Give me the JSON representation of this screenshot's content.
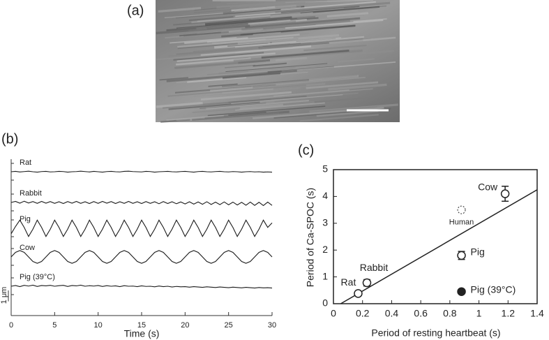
{
  "panel_labels": [
    "(a)",
    "(b)",
    "(c)"
  ],
  "chart_data": [
    {
      "type": "line",
      "xlabel": "Time (s)",
      "scale_label": "1 μm",
      "xlim": [
        0,
        30
      ],
      "xticks": [
        0,
        5,
        10,
        15,
        20,
        25,
        30
      ],
      "color": "#1a1a1a",
      "x": [
        0,
        0.5,
        1,
        1.5,
        2,
        2.5,
        3,
        3.5,
        4,
        4.5,
        5,
        5.5,
        6,
        6.5,
        7,
        7.5,
        8,
        8.5,
        9,
        9.5,
        10,
        10.5,
        11,
        11.5,
        12,
        12.5,
        13,
        13.5,
        14,
        14.5,
        15,
        15.5,
        16,
        16.5,
        17,
        17.5,
        18,
        18.5,
        19,
        19.5,
        20,
        20.5,
        21,
        21.5,
        22,
        22.5,
        23,
        23.5,
        24,
        24.5,
        25,
        25.5,
        26,
        26.5,
        27,
        27.5,
        28,
        28.5,
        29,
        29.5,
        30
      ],
      "series": [
        {
          "name": "Rat",
          "values": [
            0,
            0.02,
            -0.01,
            0.01,
            0.03,
            0,
            -0.02,
            0.01,
            0.02,
            -0.01,
            0,
            0.02,
            0.01,
            -0.02,
            0,
            0.01,
            0.03,
            0.01,
            -0.01,
            0.02,
            0,
            -0.02,
            0.01,
            0.02,
            0,
            -0.01,
            0.02,
            0.03,
            0.01,
            0,
            -0.01,
            0.02,
            0.01,
            -0.02,
            0,
            0.01,
            0.02,
            0,
            -0.01,
            0.01,
            0.02,
            0,
            -0.02,
            0.01,
            0.02,
            0,
            -0.01,
            0.01,
            0.02,
            0,
            -0.01,
            0.01,
            0,
            -0.02,
            0,
            0.01,
            -0.01,
            0,
            -0.02,
            -0.01,
            -0.02
          ]
        },
        {
          "name": "Rabbit",
          "values": [
            0,
            0.06,
            -0.04,
            0.07,
            -0.03,
            0.05,
            -0.05,
            0.06,
            -0.04,
            0.05,
            -0.05,
            0.04,
            -0.06,
            0.05,
            -0.04,
            0.06,
            -0.05,
            0.04,
            -0.06,
            0.05,
            -0.05,
            0.06,
            -0.04,
            0.05,
            -0.06,
            0.04,
            -0.05,
            0.06,
            -0.05,
            0.04,
            -0.06,
            0.05,
            -0.05,
            0.04,
            -0.07,
            0.05,
            -0.06,
            0.04,
            -0.07,
            0.03,
            -0.08,
            0.04,
            -0.09,
            0.03,
            -0.1,
            0.04,
            -0.11,
            0.02,
            -0.12,
            0.03,
            -0.13,
            0.02,
            -0.14,
            0.01,
            -0.15,
            0.02,
            -0.16,
            0.01,
            -0.17,
            0.02,
            -0.16
          ]
        },
        {
          "name": "Pig",
          "values": [
            -0.3,
            0.1,
            0.45,
            0.05,
            -0.45,
            -0.05,
            0.45,
            0.05,
            -0.45,
            -0.05,
            0.45,
            0.05,
            -0.45,
            -0.05,
            0.45,
            0.05,
            -0.45,
            -0.05,
            0.45,
            0.05,
            -0.45,
            -0.05,
            0.45,
            0.05,
            -0.45,
            -0.05,
            0.45,
            0.05,
            -0.45,
            -0.05,
            0.45,
            0.05,
            -0.45,
            -0.05,
            0.45,
            0.05,
            -0.45,
            -0.05,
            0.45,
            0.05,
            -0.45,
            -0.05,
            0.45,
            0.05,
            -0.45,
            -0.05,
            0.45,
            0.05,
            -0.45,
            -0.05,
            0.45,
            0.05,
            -0.45,
            -0.05,
            0.45,
            0.05,
            -0.45,
            -0.05,
            0.45,
            0.05,
            0.3
          ]
        },
        {
          "name": "Cow",
          "values": [
            0,
            0.25,
            0.35,
            0.25,
            0,
            -0.25,
            -0.35,
            -0.25,
            0,
            0.25,
            0.35,
            0.25,
            0,
            -0.25,
            -0.35,
            -0.25,
            0,
            0.25,
            0.35,
            0.25,
            0,
            -0.25,
            -0.35,
            -0.25,
            0,
            0.25,
            0.35,
            0.25,
            0,
            -0.25,
            -0.35,
            -0.25,
            0,
            0.25,
            0.35,
            0.25,
            0,
            -0.25,
            -0.35,
            -0.25,
            0,
            0.25,
            0.35,
            0.25,
            0,
            -0.25,
            -0.35,
            -0.25,
            0,
            0.25,
            0.35,
            0.25,
            0,
            -0.25,
            -0.35,
            -0.25,
            0,
            0.25,
            0.35,
            0.25,
            0
          ]
        },
        {
          "name": "Pig (39°C)",
          "values": [
            0,
            0.04,
            -0.02,
            0.05,
            0.01,
            0.06,
            -0.01,
            0.04,
            0.02,
            0.05,
            0,
            0.03,
            0.05,
            -0.01,
            0.04,
            0.02,
            0.06,
            0,
            0.03,
            0.01,
            0.04,
            -0.01,
            0.03,
            0,
            0.02,
            -0.02,
            0.03,
            0,
            0.01,
            -0.02,
            0.02,
            -0.01,
            0,
            -0.03,
            0.01,
            -0.02,
            0,
            -0.04,
            -0.01,
            -0.03,
            -0.02,
            -0.05,
            -0.02,
            -0.04,
            -0.06,
            -0.03,
            -0.05,
            -0.07,
            -0.04,
            -0.06,
            -0.08,
            -0.05,
            -0.07,
            -0.09,
            -0.06,
            -0.08,
            -0.1,
            -0.07,
            -0.09,
            -0.08,
            -0.1
          ]
        }
      ]
    },
    {
      "type": "scatter",
      "xlabel": "Period of resting heartbeat (s)",
      "ylabel": "Period of Ca-SPOC (s)",
      "xlim": [
        0,
        1.4
      ],
      "xticks": [
        0,
        0.2,
        0.4,
        0.6,
        0.8,
        1,
        1.2,
        1.4
      ],
      "ylim": [
        0,
        5
      ],
      "yticks": [
        0,
        1,
        2,
        3,
        4,
        5
      ],
      "color": "#1a1a1a",
      "series": [
        {
          "name": "Rat",
          "x": [
            0.17
          ],
          "values": [
            0.38
          ],
          "marker": "open"
        },
        {
          "name": "Rabbit",
          "x": [
            0.23
          ],
          "values": [
            0.78
          ],
          "errors": [
            0.12
          ],
          "marker": "open"
        },
        {
          "name": "Pig",
          "x": [
            0.88
          ],
          "values": [
            1.8
          ],
          "errors": [
            0.15
          ],
          "marker": "open"
        },
        {
          "name": "Cow",
          "x": [
            1.18
          ],
          "values": [
            4.1
          ],
          "errors": [
            0.28
          ],
          "marker": "open"
        },
        {
          "name": "Human",
          "x": [
            0.88
          ],
          "values": [
            3.5
          ],
          "marker": "dashed"
        },
        {
          "name": "Pig (39°C)",
          "x": [
            0.88
          ],
          "values": [
            0.45
          ],
          "marker": "filled"
        }
      ],
      "fit": {
        "x": [
          0.05,
          1.4
        ],
        "values": [
          0,
          4.25
        ]
      }
    }
  ]
}
